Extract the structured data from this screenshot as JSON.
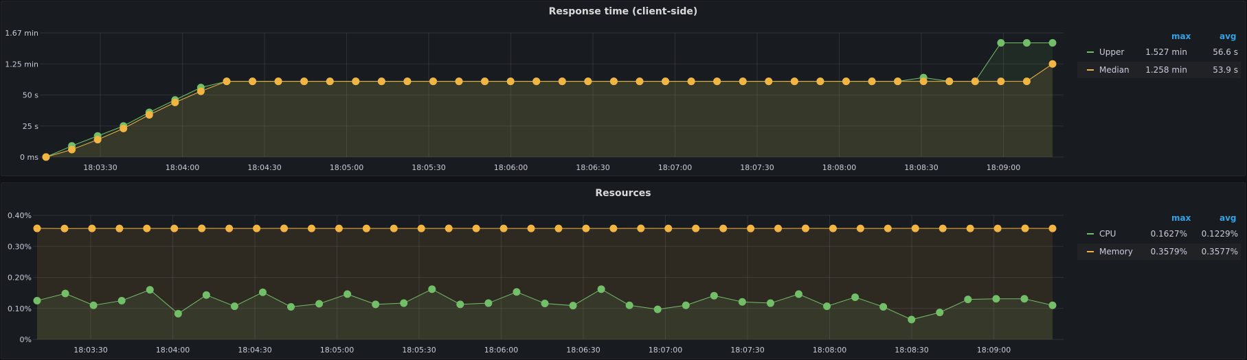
{
  "colors": {
    "green": "#73bf69",
    "yellow": "#fade2a",
    "orange": "#f2b544",
    "accent": "#33a2e5"
  },
  "chart_data": [
    {
      "type": "line",
      "title": "Response time (client-side)",
      "x_tick_labels": [
        "18:03:30",
        "18:04:00",
        "18:04:30",
        "18:05:00",
        "18:05:30",
        "18:06:00",
        "18:06:30",
        "18:07:00",
        "18:07:30",
        "18:08:00",
        "18:08:30",
        "18:09:00"
      ],
      "y_tick_labels": [
        "0 ms",
        "25 s",
        "50 s",
        "1.25 min",
        "1.67 min"
      ],
      "ylim": [
        0,
        100
      ],
      "grid": true,
      "legend": {
        "placement": "right",
        "headers": {
          "max": "max",
          "avg": "avg"
        },
        "entries": [
          {
            "name": "Upper",
            "max": "1.527 min",
            "avg": "56.6 s"
          },
          {
            "name": "Median",
            "max": "1.258 min",
            "avg": "53.9 s"
          }
        ]
      },
      "series": [
        {
          "name": "Upper",
          "color": "#73bf69",
          "values": [
            0,
            9,
            17,
            25,
            36,
            46,
            56,
            61,
            61,
            61,
            61,
            61,
            61,
            61,
            61,
            61,
            61,
            61,
            61,
            61,
            61,
            61,
            61,
            61,
            61,
            61,
            61,
            61,
            61,
            61,
            61,
            61,
            61,
            61,
            64,
            61,
            61,
            92,
            92,
            92
          ]
        },
        {
          "name": "Median",
          "color": "#f2b544",
          "values": [
            0,
            6,
            14,
            23,
            34,
            44,
            53,
            61,
            61,
            61,
            61,
            61,
            61,
            61,
            61,
            61,
            61,
            61,
            61,
            61,
            61,
            61,
            61,
            61,
            61,
            61,
            61,
            61,
            61,
            61,
            61,
            61,
            61,
            61,
            61,
            61,
            61,
            61,
            61,
            75
          ]
        }
      ]
    },
    {
      "type": "line",
      "title": "Resources",
      "x_tick_labels": [
        "18:03:30",
        "18:04:00",
        "18:04:30",
        "18:05:00",
        "18:05:30",
        "18:06:00",
        "18:06:30",
        "18:07:00",
        "18:07:30",
        "18:08:00",
        "18:08:30",
        "18:09:00"
      ],
      "y_tick_labels": [
        "0%",
        "0.10%",
        "0.20%",
        "0.30%",
        "0.40%"
      ],
      "ylim": [
        0,
        0.4
      ],
      "grid": true,
      "legend": {
        "placement": "right",
        "headers": {
          "max": "max",
          "avg": "avg"
        },
        "entries": [
          {
            "name": "CPU",
            "max": "0.1627%",
            "avg": "0.1229%"
          },
          {
            "name": "Memory",
            "max": "0.3579%",
            "avg": "0.3577%"
          }
        ]
      },
      "series": [
        {
          "name": "CPU",
          "color": "#73bf69",
          "values": [
            0.125,
            0.148,
            0.11,
            0.125,
            0.16,
            0.083,
            0.143,
            0.107,
            0.152,
            0.105,
            0.115,
            0.146,
            0.113,
            0.117,
            0.162,
            0.113,
            0.117,
            0.153,
            0.116,
            0.109,
            0.162,
            0.11,
            0.097,
            0.11,
            0.141,
            0.121,
            0.117,
            0.146,
            0.107,
            0.136,
            0.105,
            0.064,
            0.087,
            0.129,
            0.131,
            0.131,
            0.11
          ]
        },
        {
          "name": "Memory",
          "color": "#f2b544",
          "values": [
            0.3579,
            0.3575,
            0.3577,
            0.3576,
            0.3578,
            0.3577,
            0.3579,
            0.3578,
            0.3577,
            0.3579,
            0.3578,
            0.3577,
            0.3576,
            0.3577,
            0.3578,
            0.3579,
            0.3578,
            0.3577,
            0.3578,
            0.3576,
            0.3577,
            0.3578,
            0.3579,
            0.3577,
            0.3578,
            0.3577,
            0.3576,
            0.3578,
            0.3579,
            0.3577,
            0.3578,
            0.3577,
            0.3579,
            0.3578,
            0.3577,
            0.3578,
            0.3579,
            0.3578
          ]
        }
      ]
    }
  ]
}
